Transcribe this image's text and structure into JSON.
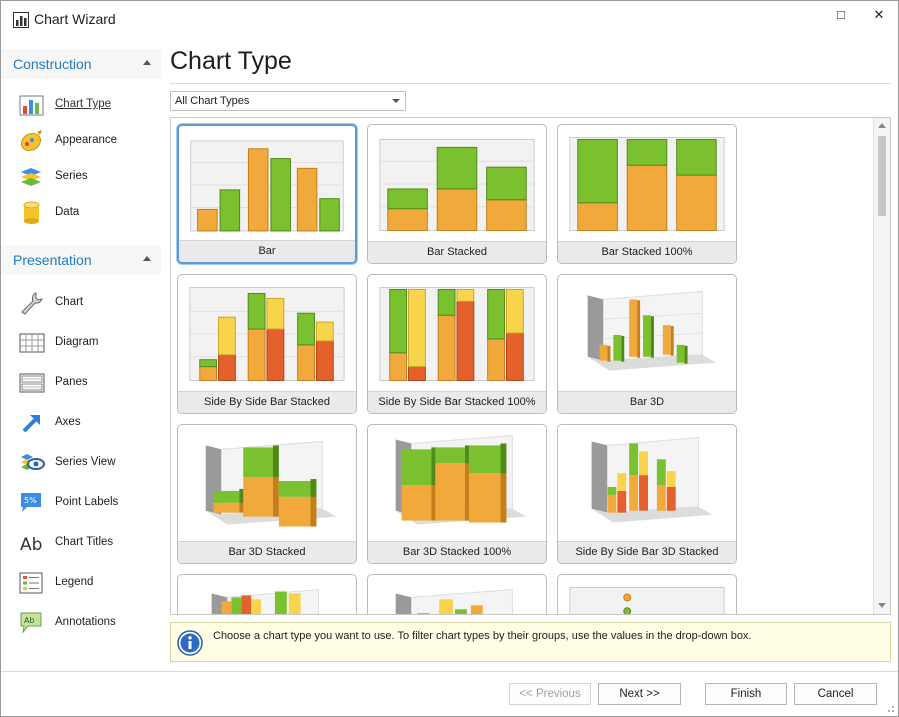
{
  "window": {
    "title": "Chart Wizard",
    "maximize_glyph": "□",
    "close_glyph": "✕"
  },
  "sidebar": {
    "groups": [
      {
        "title": "Construction",
        "items": [
          {
            "label": "Chart Type",
            "icon": "chart-type-icon",
            "active": true
          },
          {
            "label": "Appearance",
            "icon": "appearance-palette-icon"
          },
          {
            "label": "Series",
            "icon": "series-layers-icon"
          },
          {
            "label": "Data",
            "icon": "data-cylinder-icon"
          }
        ]
      },
      {
        "title": "Presentation",
        "items": [
          {
            "label": "Chart",
            "icon": "wrench-icon"
          },
          {
            "label": "Diagram",
            "icon": "diagram-grid-icon"
          },
          {
            "label": "Panes",
            "icon": "panes-icon"
          },
          {
            "label": "Axes",
            "icon": "axes-arrow-icon"
          },
          {
            "label": "Series View",
            "icon": "series-view-eye-icon"
          },
          {
            "label": "Point Labels",
            "icon": "point-labels-icon",
            "icon_text": "5%"
          },
          {
            "label": "Chart Titles",
            "icon": "chart-titles-icon",
            "icon_text": "Ab"
          },
          {
            "label": "Legend",
            "icon": "legend-list-icon"
          },
          {
            "label": "Annotations",
            "icon": "annotation-bubble-icon",
            "icon_text": "Ab"
          }
        ]
      }
    ]
  },
  "main": {
    "title": "Chart Type",
    "filter": {
      "value": "All Chart Types"
    },
    "tiles": [
      {
        "label": "Bar",
        "preview": "bar",
        "selected": true
      },
      {
        "label": "Bar Stacked",
        "preview": "bar-stacked"
      },
      {
        "label": "Bar Stacked 100%",
        "preview": "bar-stacked-100"
      },
      {
        "label": "Side By Side Bar Stacked",
        "preview": "side-by-side-bar-stacked"
      },
      {
        "label": "Side By Side Bar Stacked 100%",
        "preview": "side-by-side-bar-stacked-100"
      },
      {
        "label": "Bar 3D",
        "preview": "bar-3d"
      },
      {
        "label": "Bar 3D Stacked",
        "preview": "bar-3d-stacked"
      },
      {
        "label": "Bar 3D Stacked 100%",
        "preview": "bar-3d-stacked-100"
      },
      {
        "label": "Side By Side Bar 3D Stacked",
        "preview": "side-by-side-bar-3d-stacked"
      },
      {
        "label": "",
        "preview": "bar-3d-side-by-side-partial"
      },
      {
        "label": "",
        "preview": "bar-3d-partial"
      },
      {
        "label": "",
        "preview": "point-partial"
      }
    ],
    "info_text": "Choose a chart type you want to use. To filter chart types by their groups, use the values in the drop-down box."
  },
  "footer": {
    "previous": "<< Previous",
    "next": "Next >>",
    "finish": "Finish",
    "cancel": "Cancel"
  },
  "colors": {
    "accent": "#1f7bc6",
    "orange": "#f2a93b",
    "green": "#7ac02f",
    "yellow": "#f7d44c",
    "red": "#e5612b",
    "info_bg": "#fffee4",
    "selected_border": "#5b9bd5"
  }
}
